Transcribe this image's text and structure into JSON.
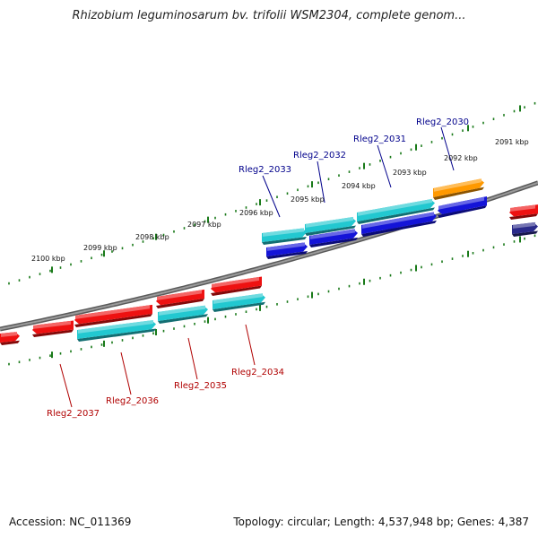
{
  "title": "Rhizobium leguminosarum bv. trifolii WSM2304, complete genom...",
  "footer": {
    "accession": "Accession: NC_011369",
    "topology": "Topology: circular; Length: 4,537,948 bp; Genes: 4,387"
  },
  "colors": {
    "background": "#ffffff",
    "backbone": "#7a7a7a",
    "ticks": "#1a7a1a",
    "forward_label": "#00008b",
    "reverse_label": "#b00000",
    "red_gene": "#ee1111",
    "cyan_gene": "#22c8d0",
    "blue_gene": "#1414d8",
    "orange_gene": "#ff9900",
    "navy_gene": "#2a2a8a"
  },
  "scale_labels": [
    "2091 kbp",
    "2092 kbp",
    "2093 kbp",
    "2094 kbp",
    "2095 kbp",
    "2096 kbp",
    "2097 kbp",
    "2098 kbp",
    "2099 kbp",
    "2100 kbp"
  ],
  "gene_labels": {
    "forward": [
      "Rleg2_2030",
      "Rleg2_2031",
      "Rleg2_2032",
      "Rleg2_2033"
    ],
    "reverse": [
      "Rleg2_2034",
      "Rleg2_2035",
      "Rleg2_2036",
      "Rleg2_2037"
    ]
  }
}
